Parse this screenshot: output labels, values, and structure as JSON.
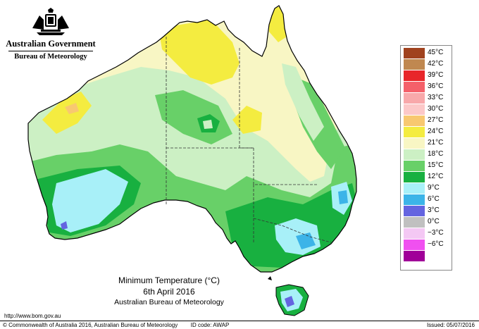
{
  "header": {
    "government": "Australian Government",
    "bureau": "Bureau of Meteorology",
    "crest_icon": "coat-of-arms-icon"
  },
  "legend": {
    "items": [
      {
        "label": "45°C",
        "color": "#a0421e"
      },
      {
        "label": "42°C",
        "color": "#c08850"
      },
      {
        "label": "39°C",
        "color": "#e8262a"
      },
      {
        "label": "36°C",
        "color": "#f4606a"
      },
      {
        "label": "33°C",
        "color": "#f8a8aa"
      },
      {
        "label": "30°C",
        "color": "#fcc8c8"
      },
      {
        "label": "27°C",
        "color": "#f8c870"
      },
      {
        "label": "24°C",
        "color": "#f4ec40"
      },
      {
        "label": "21°C",
        "color": "#f8f6c4"
      },
      {
        "label": "18°C",
        "color": "#ccf0c4"
      },
      {
        "label": "15°C",
        "color": "#68d068"
      },
      {
        "label": "12°C",
        "color": "#18b040"
      },
      {
        "label": "9°C",
        "color": "#a8f0f8"
      },
      {
        "label": "6°C",
        "color": "#3cb4e8"
      },
      {
        "label": "3°C",
        "color": "#6464e0"
      },
      {
        "label": "0°C",
        "color": "#c0c0c0"
      },
      {
        "label": "−3°C",
        "color": "#f4c8f4"
      },
      {
        "label": "−6°C",
        "color": "#f050f0"
      },
      {
        "label": "",
        "color": "#a00098"
      }
    ]
  },
  "caption": {
    "title": "Minimum Temperature (°C)",
    "date": "6th April 2016",
    "organisation": "Australian Bureau of Meteorology"
  },
  "footer": {
    "url": "http://www.bom.gov.au",
    "copyright": "© Commonwealth of Australia 2016, Australian Bureau of Meteorology",
    "id_code": "ID code: AWAP",
    "issued": "Issued: 05/07/2016"
  }
}
